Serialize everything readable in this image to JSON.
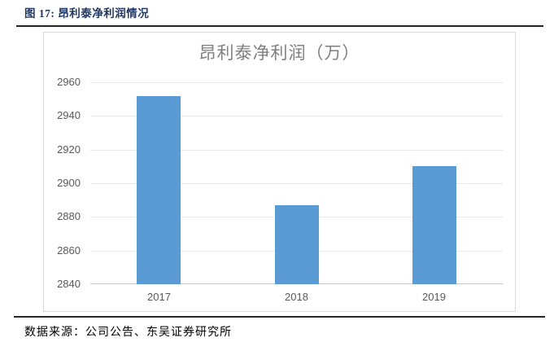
{
  "figure": {
    "caption": "图 17:  昂利泰净利润情况",
    "source": "数据来源：公司公告、东吴证券研究所"
  },
  "chart_data": {
    "type": "bar",
    "title": "昂利泰净利润（万）",
    "categories": [
      "2017",
      "2018",
      "2019"
    ],
    "values": [
      2952,
      2887,
      2910
    ],
    "xlabel": "",
    "ylabel": "",
    "ylim": [
      2840,
      2960
    ],
    "yticks": [
      2840,
      2860,
      2880,
      2900,
      2920,
      2940,
      2960
    ],
    "grid": true,
    "legend_position": "none",
    "bar_color": "#5B9BD5"
  },
  "colors": {
    "caption_text": "#1F3864",
    "title_text": "#7F7F7F",
    "axis_text": "#595959",
    "bar": "#5B9BD5",
    "gridline": "#E8E8E8",
    "axis_line": "#C6C6C6",
    "chart_border": "#D9D9D9",
    "rule": "#262626"
  }
}
